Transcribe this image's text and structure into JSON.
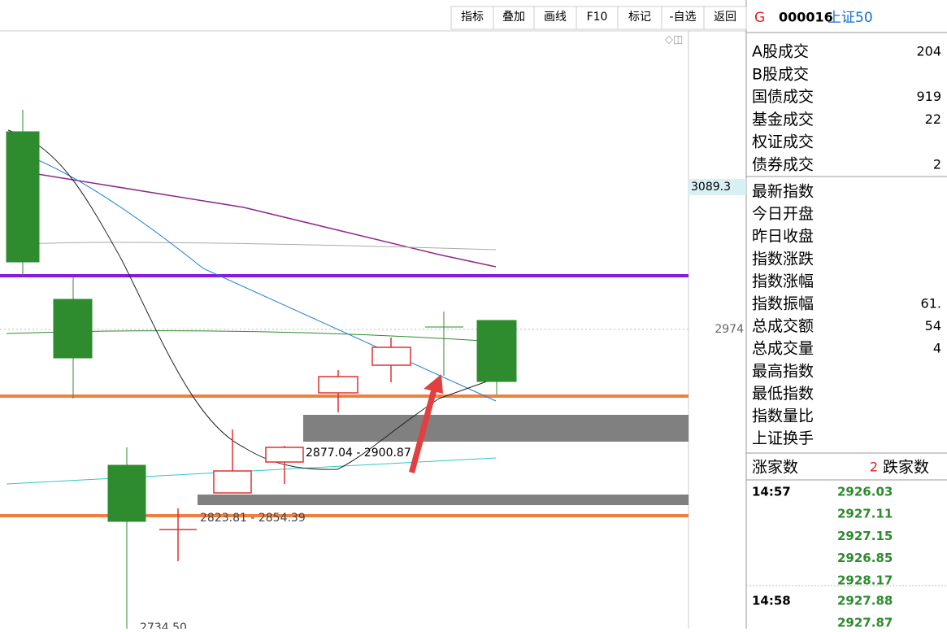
{
  "toolbar": [
    "指标",
    "叠加",
    "画线",
    "F10",
    "标记",
    "-自选",
    "返回"
  ],
  "header": {
    "marker": "G",
    "code": "000016",
    "name": "上证50"
  },
  "chart": {
    "price_tags": [
      "3089.3",
      "2974"
    ],
    "ranges": [
      "2877.04 - 2900.87",
      "2823.81 - 2854.39"
    ],
    "low_label": "2734.50"
  },
  "turnover": [
    {
      "label": "A股成交",
      "value": "204"
    },
    {
      "label": "B股成交"
    },
    {
      "label": "国债成交",
      "value": "919"
    },
    {
      "label": "基金成交",
      "value": "22"
    },
    {
      "label": "权证成交"
    },
    {
      "label": "债券成交",
      "value": "2"
    }
  ],
  "index": [
    {
      "label": "最新指数"
    },
    {
      "label": "今日开盘"
    },
    {
      "label": "昨日收盘"
    },
    {
      "label": "指数涨跌"
    },
    {
      "label": "指数涨幅"
    },
    {
      "label": "指数振幅",
      "value": "61."
    },
    {
      "label": "总成交额",
      "value": "54"
    },
    {
      "label": "总成交量",
      "value": "4"
    },
    {
      "label": "最高指数"
    },
    {
      "label": "最低指数"
    },
    {
      "label": "指数量比"
    },
    {
      "label": "上证换手"
    }
  ],
  "breadth": {
    "up_label": "涨家数",
    "up_value": "2",
    "down_label": "跌家数"
  },
  "ticks": [
    {
      "time": "14:57",
      "prices": [
        "2926.03",
        "2927.11",
        "2927.15",
        "2926.85",
        "2928.17"
      ]
    },
    {
      "time": "14:58",
      "prices": [
        "2927.88",
        "2927.87"
      ]
    }
  ]
}
